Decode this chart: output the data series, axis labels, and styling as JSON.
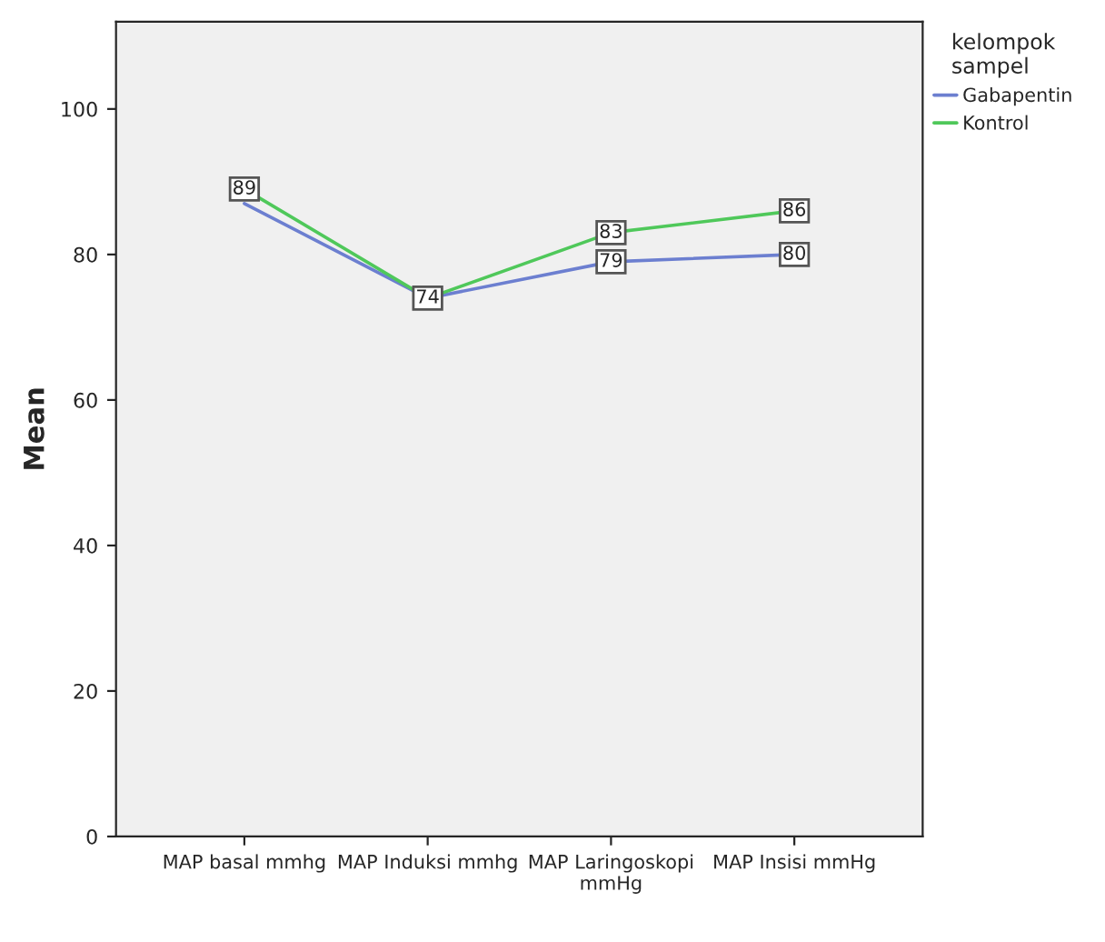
{
  "chart_data": {
    "type": "line",
    "ylabel": "Mean",
    "legend_title": "kelompok\nsampel",
    "categories": [
      "MAP basal mmhg",
      "MAP Induksi mmhg",
      "MAP Laringoskopi\nmmHg",
      "MAP Insisi mmHg"
    ],
    "series": [
      {
        "name": "Gabapentin",
        "color": "#6c7fd0",
        "values": [
          87,
          74,
          79,
          80
        ],
        "value_labels": [
          null,
          null,
          "79",
          "80"
        ]
      },
      {
        "name": "Kontrol",
        "color": "#4fc85a",
        "values": [
          89,
          74,
          83,
          86
        ],
        "value_labels": [
          "89",
          "74",
          "83",
          "86"
        ]
      }
    ],
    "ylim": [
      0,
      112
    ],
    "yticks": [
      0,
      20,
      40,
      60,
      80,
      100
    ],
    "grid": false,
    "legend": "top right",
    "line_style": "solid"
  }
}
